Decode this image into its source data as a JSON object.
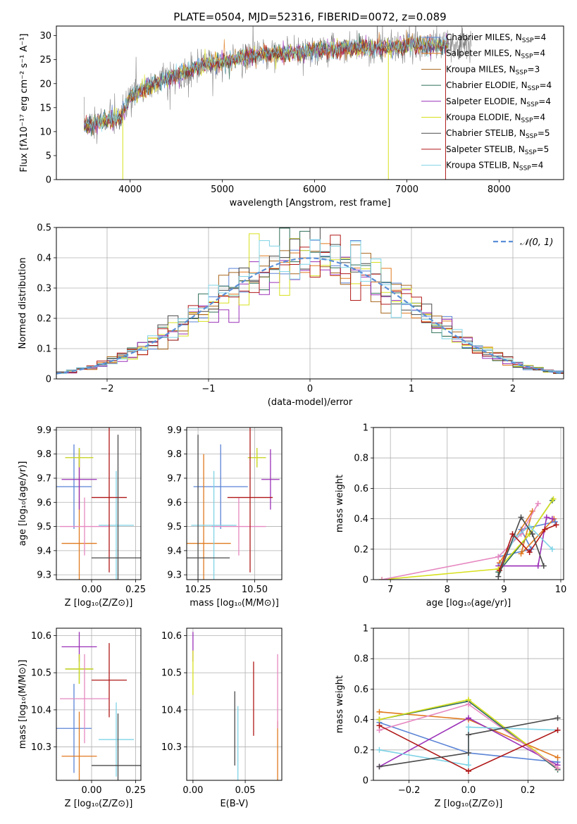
{
  "title": "PLATE=0504, MJD=52316, FIBERID=0072, z=0.089",
  "colors": {
    "chabrier_miles": "#5b84d6",
    "salpeter_miles": "#e07a1f",
    "kroupa_miles": "#a8661c",
    "chabrier_elodie": "#2f6f58",
    "salpeter_elodie": "#9b30b8",
    "kroupa_elodie": "#d7e01c",
    "chabrier_stelib": "#4a4a4a",
    "salpeter_stelib": "#b01818",
    "kroupa_stelib": "#7fd3e6",
    "data": "#808080",
    "normal": "#5b8fd6",
    "violet": "#9b30b8",
    "pink": "#e688c0",
    "green": "#a8e03a"
  },
  "chart_data": [
    {
      "id": "spectrum",
      "type": "line",
      "xlabel": "wavelength [Angstrom, rest frame]",
      "ylabel": "Flux [fλ10⁻¹⁷ erg cm⁻² s⁻¹ A⁻¹]",
      "xlim": [
        3200,
        8700
      ],
      "ylim": [
        0,
        32
      ],
      "xticks": [
        4000,
        5000,
        6000,
        7000,
        8000
      ],
      "yticks": [
        0,
        5,
        10,
        15,
        20,
        25,
        30
      ],
      "grid": false,
      "legend_placement": "top-right",
      "legend": [
        "Chabrier MILES, N_SSP=4",
        "Salpeter MILES, N_SSP=4",
        "Kroupa MILES, N_SSP=3",
        "Chabrier ELODIE, N_SSP=4",
        "Salpeter ELODIE, N_SSP=4",
        "Kroupa ELODIE, N_SSP=4",
        "Chabrier STELIB, N_SSP=5",
        "Salpeter STELIB, N_SSP=5",
        "Kroupa STELIB, N_SSP=4"
      ],
      "continuum": {
        "x": [
          3500,
          3700,
          3900,
          4000,
          4200,
          4400,
          4600,
          4800,
          5000,
          5200,
          5400,
          5600,
          5800,
          6000,
          6200,
          6400,
          6600,
          6800,
          7000,
          7200,
          7400,
          7600
        ],
        "y": [
          11,
          12,
          13,
          17,
          19.5,
          21,
          22.5,
          24,
          24.5,
          25.5,
          26,
          26.2,
          26.5,
          27,
          27,
          27.5,
          27.5,
          27.5,
          28,
          28,
          28,
          28.5
        ]
      },
      "data_range": [
        3500,
        7700
      ],
      "models_range": [
        3500,
        7450
      ]
    },
    {
      "id": "residuals",
      "type": "line",
      "xlabel": "(data-model)/error",
      "ylabel": "Normed distribution",
      "xlim": [
        -2.5,
        2.5
      ],
      "ylim": [
        0,
        0.5
      ],
      "xticks": [
        -2,
        -1,
        0,
        1,
        2
      ],
      "yticks": [
        0.0,
        0.1,
        0.2,
        0.3,
        0.4,
        0.5
      ],
      "grid": true,
      "legend_placement": "top-right",
      "legend": [
        "𝒩(0, 1)"
      ],
      "bin_width": 0.1
    },
    {
      "id": "age-vs-Z",
      "type": "scatter",
      "xlabel": "Z [log₁₀(Z/Z⊙)]",
      "ylabel": "age  [log₁₀(age/yr)]",
      "xlim": [
        -0.2,
        0.28
      ],
      "ylim": [
        9.28,
        9.91
      ],
      "xticks": [
        0.0,
        0.25
      ],
      "xticklabels": [
        "0.00",
        "0.25"
      ],
      "yticks": [
        9.3,
        9.4,
        9.5,
        9.6,
        9.7,
        9.8,
        9.9
      ],
      "grid": true,
      "points": [
        {
          "c": "chabrier_miles",
          "x": -0.1,
          "xe": 0.1,
          "y": 9.665,
          "ye": 0.175
        },
        {
          "c": "salpeter_miles",
          "x": -0.07,
          "xe": 0.1,
          "y": 9.43,
          "ye": 0.37
        },
        {
          "c": "chabrier_elodie",
          "x": -0.07,
          "xe": 0.08,
          "y": 9.785,
          "ye": 0.04
        },
        {
          "c": "salpeter_elodie",
          "x": -0.07,
          "xe": 0.1,
          "y": 9.695,
          "ye": 0.125
        },
        {
          "c": "kroupa_elodie",
          "x": -0.07,
          "xe": 0.08,
          "y": 9.785,
          "ye": 0.04
        },
        {
          "c": "pink",
          "x": -0.04,
          "xe": 0.14,
          "y": 9.5,
          "ye": 0.12
        },
        {
          "c": "kroupa_stelib",
          "x": 0.14,
          "xe": 0.1,
          "y": 9.505,
          "ye": 0.225
        },
        {
          "c": "salpeter_stelib",
          "x": 0.1,
          "xe": 0.1,
          "y": 9.62,
          "ye": 0.31
        },
        {
          "c": "chabrier_stelib",
          "x": 0.15,
          "xe": 0.15,
          "y": 9.37,
          "ye": 0.51
        }
      ]
    },
    {
      "id": "age-vs-mass",
      "type": "scatter",
      "xlabel": "mass [log₁₀(M/M⊙)]",
      "ylabel": "",
      "xlim": [
        10.2,
        10.62
      ],
      "ylim": [
        9.28,
        9.91
      ],
      "xticks": [
        10.25,
        10.5
      ],
      "xticklabels": [
        "10.25",
        "10.50"
      ],
      "yticks": [
        9.3,
        9.4,
        9.5,
        9.6,
        9.7,
        9.8,
        9.9
      ],
      "grid": true,
      "points": [
        {
          "c": "chabrier_miles",
          "x": 10.35,
          "xe": 0.12,
          "y": 9.665,
          "ye": 0.175
        },
        {
          "c": "salpeter_miles",
          "x": 10.275,
          "xe": 0.12,
          "y": 9.43,
          "ye": 0.37
        },
        {
          "c": "chabrier_elodie",
          "x": 10.51,
          "xe": 0.04,
          "y": 9.785,
          "ye": 0.04
        },
        {
          "c": "salpeter_elodie",
          "x": 10.57,
          "xe": 0.04,
          "y": 9.695,
          "ye": 0.125
        },
        {
          "c": "kroupa_elodie",
          "x": 10.51,
          "xe": 0.04,
          "y": 9.785,
          "ye": 0.04
        },
        {
          "c": "pink",
          "x": 10.43,
          "xe": 0.12,
          "y": 9.5,
          "ye": 0.12
        },
        {
          "c": "kroupa_stelib",
          "x": 10.32,
          "xe": 0.1,
          "y": 9.505,
          "ye": 0.225
        },
        {
          "c": "salpeter_stelib",
          "x": 10.48,
          "xe": 0.1,
          "y": 9.62,
          "ye": 0.31
        },
        {
          "c": "chabrier_stelib",
          "x": 10.25,
          "xe": 0.14,
          "y": 9.37,
          "ye": 0.51
        }
      ]
    },
    {
      "id": "mass-vs-Z",
      "type": "scatter",
      "xlabel": "Z [log₁₀(Z/Z⊙)]",
      "ylabel": "mass [log₁₀(M/M⊙)]",
      "xlim": [
        -0.2,
        0.28
      ],
      "ylim": [
        10.21,
        10.62
      ],
      "xticks": [
        0.0,
        0.25
      ],
      "xticklabels": [
        "0.00",
        "0.25"
      ],
      "yticks": [
        10.3,
        10.4,
        10.5,
        10.6
      ],
      "grid": true,
      "points": [
        {
          "c": "chabrier_miles",
          "x": -0.1,
          "xe": 0.1,
          "y": 10.35,
          "ye": 0.12
        },
        {
          "c": "salpeter_miles",
          "x": -0.07,
          "xe": 0.1,
          "y": 10.275,
          "ye": 0.12
        },
        {
          "c": "chabrier_elodie",
          "x": -0.07,
          "xe": 0.08,
          "y": 10.51,
          "ye": 0.04
        },
        {
          "c": "salpeter_elodie",
          "x": -0.07,
          "xe": 0.1,
          "y": 10.57,
          "ye": 0.04
        },
        {
          "c": "kroupa_elodie",
          "x": -0.07,
          "xe": 0.08,
          "y": 10.51,
          "ye": 0.04
        },
        {
          "c": "pink",
          "x": -0.04,
          "xe": 0.14,
          "y": 10.43,
          "ye": 0.12
        },
        {
          "c": "kroupa_stelib",
          "x": 0.14,
          "xe": 0.1,
          "y": 10.32,
          "ye": 0.1
        },
        {
          "c": "salpeter_stelib",
          "x": 0.1,
          "xe": 0.1,
          "y": 10.48,
          "ye": 0.1
        },
        {
          "c": "chabrier_stelib",
          "x": 0.15,
          "xe": 0.15,
          "y": 10.25,
          "ye": 0.14
        }
      ]
    },
    {
      "id": "mass-vs-ebv",
      "type": "scatter",
      "xlabel": "E(B-V)",
      "ylabel": "",
      "xlim": [
        -0.006,
        0.085
      ],
      "ylim": [
        10.21,
        10.62
      ],
      "xticks": [
        0.0,
        0.05
      ],
      "xticklabels": [
        "0.00",
        "0.05"
      ],
      "yticks": [
        10.3,
        10.4,
        10.5,
        10.6
      ],
      "grid": true,
      "points": [
        {
          "c": "salpeter_elodie",
          "x": 0.0,
          "xe": 0,
          "y": 10.57,
          "ye": 0.04
        },
        {
          "c": "kroupa_elodie",
          "x": 0.0,
          "xe": 0,
          "y": 10.5,
          "ye": 0.06
        },
        {
          "c": "chabrier_stelib",
          "x": 0.04,
          "xe": 0,
          "y": 10.35,
          "ye": 0.1
        },
        {
          "c": "kroupa_stelib",
          "x": 0.043,
          "xe": 0,
          "y": 10.31,
          "ye": 0.1
        },
        {
          "c": "salpeter_stelib",
          "x": 0.058,
          "xe": 0,
          "y": 10.43,
          "ye": 0.1
        },
        {
          "c": "salpeter_miles",
          "x": 0.081,
          "xe": 0,
          "y": 10.27,
          "ye": 0.1
        },
        {
          "c": "pink",
          "x": 0.081,
          "xe": 0,
          "y": 10.45,
          "ye": 0.1
        }
      ]
    },
    {
      "id": "weight-vs-age",
      "type": "line",
      "xlabel": "age  [log₁₀(age/yr)]",
      "ylabel": "mass weight",
      "xlim": [
        6.7,
        10.05
      ],
      "ylim": [
        0,
        1
      ],
      "xticks": [
        7,
        8,
        9,
        10
      ],
      "yticks": [
        0.0,
        0.2,
        0.4,
        0.6,
        0.8,
        1.0
      ],
      "grid": true,
      "series": [
        {
          "c": "chabrier_miles",
          "x": [
            8.9,
            9.48,
            9.3,
            9.9
          ],
          "y": [
            0.15,
            0.2,
            0.33,
            0.38
          ]
        },
        {
          "c": "salpeter_miles",
          "x": [
            8.92,
            9.5,
            9.3,
            9.88
          ],
          "y": [
            0.11,
            0.45,
            0.17,
            0.4
          ]
        },
        {
          "c": "chabrier_elodie",
          "x": [
            8.9,
            9.45,
            9.85
          ],
          "y": [
            0.05,
            0.3,
            0.52
          ]
        },
        {
          "c": "salpeter_elodie",
          "x": [
            8.9,
            9.6,
            9.75,
            9.85
          ],
          "y": [
            0.09,
            0.09,
            0.41,
            0.4
          ]
        },
        {
          "c": "kroupa_elodie",
          "x": [
            6.85,
            8.9,
            9.45,
            9.87
          ],
          "y": [
            0.0,
            0.07,
            0.3,
            0.53
          ]
        },
        {
          "c": "pink",
          "x": [
            6.85,
            8.9,
            9.3,
            9.6
          ],
          "y": [
            0.0,
            0.15,
            0.3,
            0.5
          ]
        },
        {
          "c": "kroupa_stelib",
          "x": [
            8.95,
            9.2,
            9.45,
            9.85
          ],
          "y": [
            0.1,
            0.28,
            0.35,
            0.2
          ]
        },
        {
          "c": "salpeter_stelib",
          "x": [
            8.92,
            9.15,
            9.45,
            9.72,
            9.92
          ],
          "y": [
            0.06,
            0.3,
            0.18,
            0.33,
            0.36
          ]
        },
        {
          "c": "chabrier_stelib",
          "x": [
            8.9,
            9.3,
            9.5,
            9.7
          ],
          "y": [
            0.02,
            0.41,
            0.3,
            0.09
          ]
        }
      ]
    },
    {
      "id": "weight-vs-Z",
      "type": "line",
      "xlabel": "Z [log₁₀(Z/Z⊙)]",
      "ylabel": "mass weight",
      "xlim": [
        -0.32,
        0.32
      ],
      "ylim": [
        0,
        1
      ],
      "xticks": [
        -0.2,
        0.0,
        0.2
      ],
      "xticklabels": [
        "−0.2",
        "0.0",
        "0.2"
      ],
      "yticks": [
        0.0,
        0.2,
        0.4,
        0.6,
        0.8,
        1.0
      ],
      "grid": true,
      "series": [
        {
          "c": "chabrier_miles",
          "x": [
            -0.3,
            0.0,
            0.3
          ],
          "y": [
            0.38,
            0.18,
            0.12
          ]
        },
        {
          "c": "salpeter_miles",
          "x": [
            -0.3,
            0.0,
            0.3
          ],
          "y": [
            0.45,
            0.4,
            0.15
          ]
        },
        {
          "c": "chabrier_elodie",
          "x": [
            -0.3,
            0.0,
            0.3
          ],
          "y": [
            0.4,
            0.52,
            0.07
          ]
        },
        {
          "c": "salpeter_elodie",
          "x": [
            -0.3,
            0.0,
            0.3
          ],
          "y": [
            0.09,
            0.41,
            0.1
          ]
        },
        {
          "c": "kroupa_elodie",
          "x": [
            -0.3,
            0.0,
            0.3
          ],
          "y": [
            0.4,
            0.53,
            0.08
          ]
        },
        {
          "c": "pink",
          "x": [
            -0.3,
            0.0,
            0.3
          ],
          "y": [
            0.33,
            0.5,
            0.08
          ]
        },
        {
          "c": "kroupa_stelib",
          "x": [
            -0.3,
            0.0,
            0.0,
            0.3
          ],
          "y": [
            0.2,
            0.1,
            0.35,
            0.33
          ]
        },
        {
          "c": "salpeter_stelib",
          "x": [
            -0.3,
            0.0,
            0.3
          ],
          "y": [
            0.36,
            0.06,
            0.33
          ]
        },
        {
          "c": "chabrier_stelib",
          "x": [
            -0.3,
            0.0,
            0.0,
            0.3
          ],
          "y": [
            0.09,
            0.18,
            0.3,
            0.41
          ]
        }
      ]
    }
  ]
}
